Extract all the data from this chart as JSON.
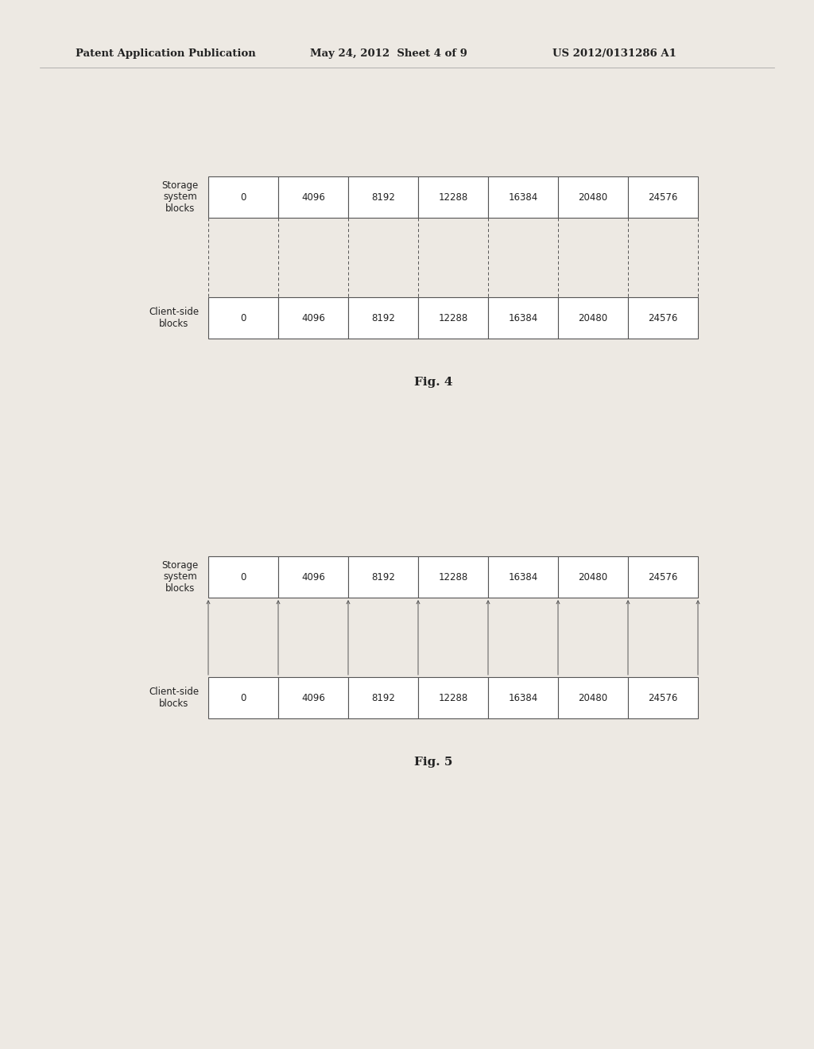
{
  "header_left": "Patent Application Publication",
  "header_mid": "May 24, 2012  Sheet 4 of 9",
  "header_right": "US 2012/0131286 A1",
  "fig4_label": "Fig. 4",
  "fig5_label": "Fig. 5",
  "cell_values": [
    "0",
    "4096",
    "8192",
    "12288",
    "16384",
    "20480",
    "24576"
  ],
  "row_label_storage": "Storage\nsystem\nblocks",
  "row_label_client": "Client-side\nblocks",
  "bg_color": "#ede9e3",
  "cell_bg": "#ffffff",
  "border_color": "#555555",
  "text_color": "#222222",
  "header_font_size": 9.5,
  "cell_font_size": 8.5,
  "label_font_size": 8.5,
  "fig_label_font_size": 11
}
